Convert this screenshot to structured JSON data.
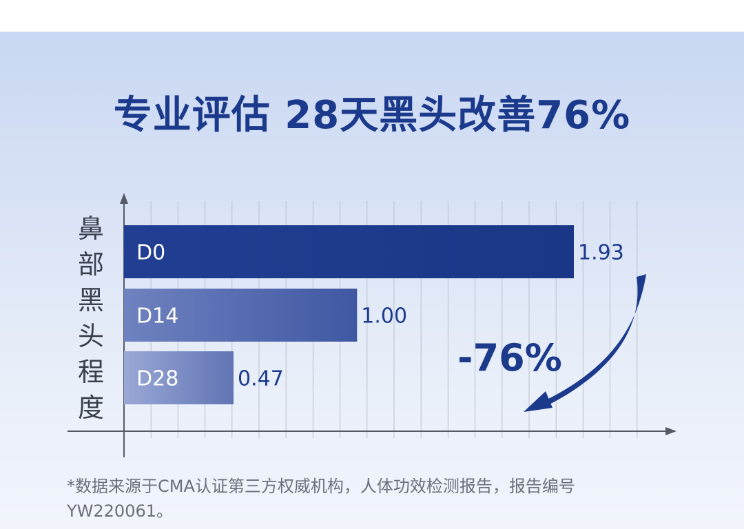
{
  "chart_data": {
    "type": "bar",
    "orientation": "horizontal",
    "title": "专业评估 28天黑头改善76%",
    "ylabel": "鼻部黑头程度",
    "xlabel": "",
    "categories": [
      "D0",
      "D14",
      "D28"
    ],
    "values": [
      1.93,
      1.0,
      0.47
    ],
    "value_labels": [
      "1.93",
      "1.00",
      "0.47"
    ],
    "xlim": [
      0,
      2.4
    ],
    "grid": true,
    "annotation": "-76%",
    "colors": [
      "#1c3a8c",
      "#4a61a8",
      "#7b8cc4"
    ]
  },
  "footnote": {
    "line1": "*数据来源于CMA认证第三方权威机构，人体功效检测报告，报告编号",
    "line2": "YW220061。"
  }
}
